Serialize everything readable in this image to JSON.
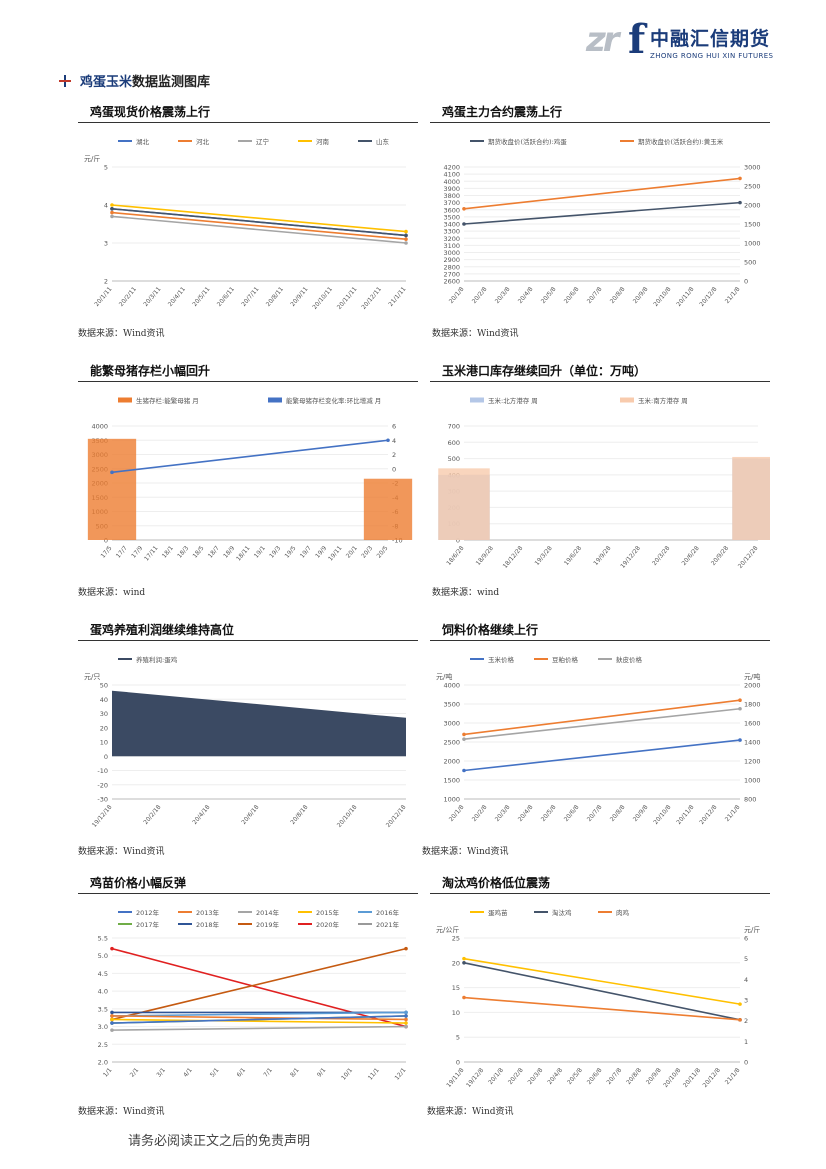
{
  "header": {
    "logo_mark": "zrf",
    "company_cn": "中融汇信期货",
    "company_en": "ZHONG RONG HUI XIN FUTURES"
  },
  "section": {
    "title_part1": "鸡蛋玉米",
    "title_part2": "数据监测图库"
  },
  "colors": {
    "brand_blue": "#1b3c7a",
    "series_blue": "#4472c4",
    "series_orange": "#ed7d31",
    "series_gray": "#a5a5a5",
    "series_yellow": "#ffc000",
    "series_navy": "#44546a",
    "series_red": "#e02020",
    "series_green": "#70ad47",
    "series_lightblue": "#5b9bd5"
  },
  "panels": [
    {
      "id": "p1",
      "title": "鸡蛋现货价格震荡上行",
      "source": "数据来源：Wind资讯",
      "chart_data": {
        "type": "line",
        "ylabel": "元/斤",
        "ylim": [
          2,
          5
        ],
        "yticks": [
          "5",
          "4",
          "3",
          "2"
        ],
        "xticks": [
          "20/1/11",
          "20/2/11",
          "20/3/11",
          "20/4/11",
          "20/5/11",
          "20/6/11",
          "20/7/11",
          "20/8/11",
          "20/9/11",
          "20/10/11",
          "20/11/11",
          "20/12/11",
          "21/1/11"
        ],
        "legend": [
          "湖北",
          "河北",
          "辽宁",
          "河南",
          "山东"
        ],
        "series": [
          {
            "name": "湖北",
            "color": "#4472c4",
            "values": [
              3.9,
              3.2
            ]
          },
          {
            "name": "河北",
            "color": "#ed7d31",
            "values": [
              3.8,
              3.1
            ]
          },
          {
            "name": "辽宁",
            "color": "#a5a5a5",
            "values": [
              3.7,
              3.0
            ]
          },
          {
            "name": "河南",
            "color": "#ffc000",
            "values": [
              4.0,
              3.3
            ]
          },
          {
            "name": "山东",
            "color": "#44546a",
            "values": [
              3.9,
              3.2
            ]
          }
        ]
      }
    },
    {
      "id": "p2",
      "title": "鸡蛋主力合约震荡上行",
      "source": "数据来源：Wind资讯",
      "chart_data": {
        "type": "line",
        "yticks_left": [
          "4200",
          "4100",
          "4000",
          "3900",
          "3800",
          "3700",
          "3600",
          "3500",
          "3400",
          "3300",
          "3200",
          "3100",
          "3000",
          "2900",
          "2800",
          "2700",
          "2600"
        ],
        "ylim_left": [
          2600,
          4200
        ],
        "yticks_right": [
          "3000",
          "2500",
          "2000",
          "1500",
          "1000",
          "500",
          "0"
        ],
        "ylim_right": [
          0,
          3000
        ],
        "xticks": [
          "20/1/8",
          "20/2/8",
          "20/3/8",
          "20/4/8",
          "20/5/8",
          "20/6/8",
          "20/7/8",
          "20/8/8",
          "20/9/8",
          "20/10/8",
          "20/11/8",
          "20/12/8",
          "21/1/8"
        ],
        "legend": [
          "期货收盘价(活跃合约):鸡蛋",
          "期货收盘价(活跃合约):黄玉米"
        ],
        "series": [
          {
            "name": "期货收盘价(活跃合约):鸡蛋",
            "axis": "left",
            "color": "#44546a",
            "values": [
              3400,
              3700
            ]
          },
          {
            "name": "期货收盘价(活跃合约):黄玉米",
            "axis": "right",
            "color": "#ed7d31",
            "values": [
              1900,
              2700
            ]
          }
        ]
      }
    },
    {
      "id": "p3",
      "title": "能繁母猪存栏小幅回升",
      "source": "数据来源：wind",
      "chart_data": {
        "type": "bar",
        "yticks_left": [
          "4000",
          "3500",
          "3000",
          "2500",
          "2000",
          "1500",
          "1000",
          "500",
          "0"
        ],
        "ylim_left": [
          0,
          4000
        ],
        "yticks_right": [
          "6",
          "4",
          "2",
          "0",
          "-2",
          "-4",
          "-6",
          "-8",
          "-10"
        ],
        "ylim_right": [
          -10,
          6
        ],
        "xticks": [
          "17/5",
          "17/7",
          "17/9",
          "17/11",
          "18/1",
          "18/3",
          "18/5",
          "18/7",
          "18/9",
          "18/11",
          "19/1",
          "19/3",
          "19/5",
          "19/7",
          "19/9",
          "19/11",
          "20/1",
          "20/3",
          "20/5"
        ],
        "legend": [
          "生猪存栏:能繁母猪 月",
          "能繁母猪存栏变化率:环比增减 月"
        ],
        "series": [
          {
            "name": "生猪存栏:能繁母猪 月",
            "axis": "left",
            "color": "#ed7d31",
            "values": [
              3550,
              2150
            ]
          },
          {
            "name": "能繁母猪存栏变化率:环比增减 月",
            "axis": "right",
            "color": "#4472c4",
            "values": [
              -0.5,
              4
            ]
          }
        ]
      }
    },
    {
      "id": "p4",
      "title": "玉米港口库存继续回升（单位：万吨）",
      "source": "数据来源：wind",
      "chart_data": {
        "type": "bar",
        "yticks": [
          "700",
          "600",
          "500",
          "400",
          "300",
          "200",
          "100",
          "0"
        ],
        "ylim": [
          0,
          700
        ],
        "xticks": [
          "18/6/28",
          "18/9/28",
          "18/12/28",
          "19/3/28",
          "19/6/28",
          "19/9/28",
          "19/12/28",
          "20/3/28",
          "20/6/28",
          "20/9/28",
          "20/12/28"
        ],
        "legend": [
          "玉米:北方港存 周",
          "玉米:南方港存 周"
        ],
        "series": [
          {
            "name": "玉米:北方港存 周",
            "color": "#b4c7e7",
            "values": [
              400,
              500
            ]
          },
          {
            "name": "玉米:南方港存 周",
            "color": "#f8cbad",
            "values": [
              440,
              510
            ]
          }
        ]
      }
    },
    {
      "id": "p5",
      "title": "蛋鸡养殖利润继续维持高位",
      "source": "数据来源：Wind资讯",
      "chart_data": {
        "type": "area",
        "ylabel": "元/只",
        "yticks": [
          "50",
          "40",
          "30",
          "20",
          "10",
          "0",
          "-10",
          "-20",
          "-30"
        ],
        "ylim": [
          -30,
          50
        ],
        "xticks": [
          "19/12/18",
          "20/2/18",
          "20/4/18",
          "20/6/18",
          "20/8/18",
          "20/10/18",
          "20/12/18"
        ],
        "legend": [
          "养殖利润:蛋鸡"
        ],
        "series": [
          {
            "name": "养殖利润:蛋鸡",
            "color": "#3b4a63",
            "values": [
              46,
              27
            ]
          }
        ]
      }
    },
    {
      "id": "p6",
      "title": "饲料价格继续上行",
      "source": "数据来源：Wind资讯",
      "chart_data": {
        "type": "line",
        "ylabel_left": "元/吨",
        "ylabel_right": "元/吨",
        "yticks_left": [
          "4000",
          "3500",
          "3000",
          "2500",
          "2000",
          "1500",
          "1000"
        ],
        "ylim_left": [
          1000,
          4000
        ],
        "yticks_right": [
          "2000",
          "1800",
          "1600",
          "1400",
          "1200",
          "1000",
          "800"
        ],
        "ylim_right": [
          800,
          2000
        ],
        "xticks": [
          "20/1/8",
          "20/2/8",
          "20/3/8",
          "20/4/8",
          "20/5/8",
          "20/6/8",
          "20/7/8",
          "20/8/8",
          "20/9/8",
          "20/10/8",
          "20/11/8",
          "20/12/8",
          "21/1/8"
        ],
        "legend": [
          "玉米价格",
          "豆粕价格",
          "麸皮价格"
        ],
        "series": [
          {
            "name": "玉米价格",
            "axis": "right",
            "color": "#4472c4",
            "values": [
              1100,
              1420
            ]
          },
          {
            "name": "豆粕价格",
            "axis": "left",
            "color": "#ed7d31",
            "values": [
              2700,
              3600
            ]
          },
          {
            "name": "麸皮价格",
            "axis": "right",
            "color": "#a5a5a5",
            "values": [
              1430,
              1750
            ]
          }
        ]
      }
    },
    {
      "id": "p7",
      "title": "鸡苗价格小幅反弹",
      "source": "数据来源：Wind资讯",
      "chart_data": {
        "type": "line",
        "yticks": [
          "5.5",
          "5.0",
          "4.5",
          "4.0",
          "3.5",
          "3.0",
          "2.5",
          "2.0"
        ],
        "ylim": [
          2.0,
          5.5
        ],
        "xticks": [
          "1/1",
          "2/1",
          "3/1",
          "4/1",
          "5/1",
          "6/1",
          "7/1",
          "8/1",
          "9/1",
          "10/1",
          "11/1",
          "12/1"
        ],
        "legend": [
          "2012年",
          "2013年",
          "2014年",
          "2015年",
          "2016年",
          "2017年",
          "2018年",
          "2019年",
          "2020年",
          "2021年"
        ],
        "series": [
          {
            "name": "2020年",
            "color": "#e02020",
            "values": [
              5.2,
              3.0
            ]
          },
          {
            "name": "2019年",
            "color": "#c55a11",
            "values": [
              3.2,
              5.2
            ]
          },
          {
            "name": "2018年",
            "color": "#2f5597",
            "values": [
              3.4,
              3.4
            ]
          },
          {
            "name": "2017年",
            "color": "#70ad47",
            "values": [
              3.1,
              3.3
            ]
          },
          {
            "name": "2016年",
            "color": "#5b9bd5",
            "values": [
              3.3,
              3.4
            ]
          },
          {
            "name": "2015年",
            "color": "#ffc000",
            "values": [
              3.2,
              3.1
            ]
          },
          {
            "name": "2014年",
            "color": "#a5a5a5",
            "values": [
              2.9,
              3.0
            ]
          },
          {
            "name": "2013年",
            "color": "#ed7d31",
            "values": [
              3.3,
              3.2
            ]
          },
          {
            "name": "2012年",
            "color": "#4472c4",
            "values": [
              3.1,
              3.3
            ]
          }
        ]
      }
    },
    {
      "id": "p8",
      "title": "淘汰鸡价格低位震荡",
      "source": "数据来源：Wind资讯",
      "chart_data": {
        "type": "line",
        "ylabel_left": "元/公斤",
        "ylabel_right": "元/斤",
        "yticks_left": [
          "25",
          "20",
          "15",
          "10",
          "5",
          "0"
        ],
        "ylim_left": [
          0,
          25
        ],
        "yticks_right": [
          "6",
          "5",
          "4",
          "3",
          "2",
          "1",
          "0"
        ],
        "ylim_right": [
          0,
          6
        ],
        "xticks": [
          "19/11/8",
          "19/12/8",
          "20/1/8",
          "20/2/8",
          "20/3/8",
          "20/4/8",
          "20/5/8",
          "20/6/8",
          "20/7/8",
          "20/8/8",
          "20/9/8",
          "20/10/8",
          "20/11/8",
          "20/12/8",
          "21/1/8"
        ],
        "legend": [
          "蛋鸡苗",
          "淘汰鸡",
          "肉鸡"
        ],
        "series": [
          {
            "name": "蛋鸡苗",
            "axis": "right",
            "color": "#ffc000",
            "values": [
              5,
              2.8
            ]
          },
          {
            "name": "淘汰鸡",
            "axis": "left",
            "color": "#44546a",
            "values": [
              20,
              8.5
            ]
          },
          {
            "name": "肉鸡",
            "axis": "left",
            "color": "#ed7d31",
            "values": [
              13,
              8.5
            ]
          }
        ]
      }
    }
  ],
  "footer": {
    "disclaimer": "请务必阅读正文之后的免责声明"
  }
}
